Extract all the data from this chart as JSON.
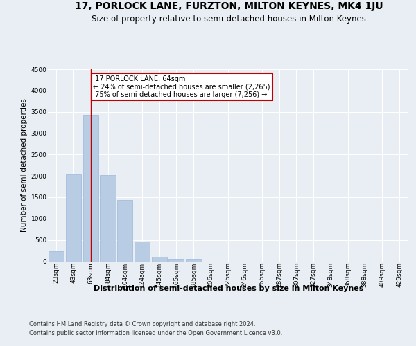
{
  "title": "17, PORLOCK LANE, FURZTON, MILTON KEYNES, MK4 1JU",
  "subtitle": "Size of property relative to semi-detached houses in Milton Keynes",
  "xlabel": "Distribution of semi-detached houses by size in Milton Keynes",
  "ylabel": "Number of semi-detached properties",
  "footnote1": "Contains HM Land Registry data © Crown copyright and database right 2024.",
  "footnote2": "Contains public sector information licensed under the Open Government Licence v3.0.",
  "categories": [
    "23sqm",
    "43sqm",
    "63sqm",
    "84sqm",
    "104sqm",
    "124sqm",
    "145sqm",
    "165sqm",
    "185sqm",
    "206sqm",
    "226sqm",
    "246sqm",
    "266sqm",
    "287sqm",
    "307sqm",
    "327sqm",
    "348sqm",
    "368sqm",
    "388sqm",
    "409sqm",
    "429sqm"
  ],
  "values": [
    230,
    2030,
    3430,
    2020,
    1430,
    470,
    110,
    60,
    60,
    0,
    0,
    0,
    0,
    0,
    0,
    0,
    0,
    0,
    0,
    0,
    0
  ],
  "bar_color": "#b8cce4",
  "bar_edge_color": "#9ab8d8",
  "vline_color": "#c00000",
  "annotation_box_color": "#c00000",
  "property_label": "17 PORLOCK LANE: 64sqm",
  "pct_smaller": 24,
  "n_smaller": 2265,
  "pct_larger": 75,
  "n_larger": 7256,
  "vline_x_index": 2,
  "ylim": [
    0,
    4500
  ],
  "yticks": [
    0,
    500,
    1000,
    1500,
    2000,
    2500,
    3000,
    3500,
    4000,
    4500
  ],
  "bg_color": "#e8eef4",
  "plot_bg_color": "#e8eef4",
  "grid_color": "#ffffff",
  "title_fontsize": 10,
  "subtitle_fontsize": 8.5,
  "xlabel_fontsize": 8,
  "ylabel_fontsize": 7.5,
  "tick_fontsize": 6.5,
  "footnote_fontsize": 6,
  "annot_fontsize": 7
}
